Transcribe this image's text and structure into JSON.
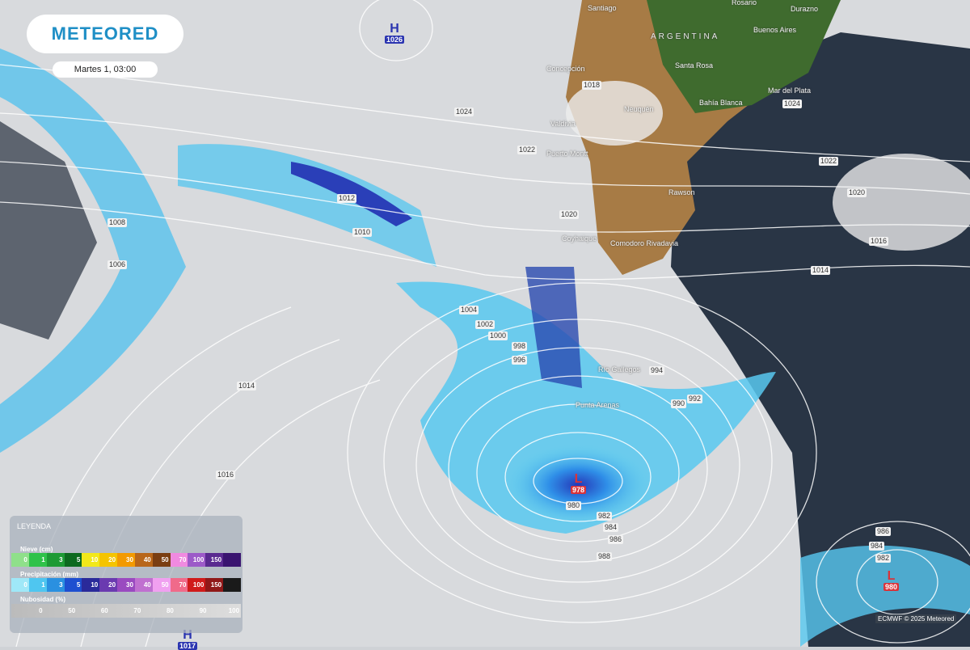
{
  "brand": {
    "logo": "METEORED",
    "datetime": "Martes 1, 03:00"
  },
  "colors": {
    "brand": "#1f8fc6",
    "ocean": "#101a2a",
    "land_green": "#3f6b2e",
    "land_brown": "#a77b45",
    "precip_light": "#5cd0f0",
    "precip_dark": "#2d3fb8",
    "low_label": "#d9333a",
    "high_label": "#2a34b0"
  },
  "country": "ARGENTINA",
  "cities": [
    "Santiago",
    "Rosario",
    "Durazno",
    "Buenos Aires",
    "Concepción",
    "Santa Rosa",
    "Bahía Blanca",
    "Mar del Plata",
    "Neuquén",
    "Valdivia",
    "Puerto Montt",
    "Rawson",
    "Coyhaique",
    "Comodoro Rivadavia",
    "Río Gallegos",
    "Punta Arenas"
  ],
  "pressure_centers": [
    {
      "type": "H",
      "value": "1026"
    },
    {
      "type": "L",
      "value": "978"
    },
    {
      "type": "L",
      "value": "980"
    },
    {
      "type": "H",
      "value": "1017"
    }
  ],
  "isobar_labels": [
    "1024",
    "1022",
    "1018",
    "1024",
    "1022",
    "1020",
    "1016",
    "1014",
    "1012",
    "1010",
    "1008",
    "1006",
    "1004",
    "1002",
    "1000",
    "998",
    "996",
    "994",
    "992",
    "990",
    "1014",
    "1016",
    "982",
    "984",
    "986",
    "988",
    "980",
    "982",
    "984",
    "986",
    "1020"
  ],
  "legend": {
    "title": "LEYENDA",
    "snow": {
      "label": "Nieve (cm)",
      "steps": [
        "0",
        "1",
        "3",
        "5",
        "10",
        "20",
        "30",
        "40",
        "50",
        "70",
        "100",
        "150"
      ],
      "colors": [
        "#8fe08a",
        "#2fc24a",
        "#1d9a35",
        "#0c6a1f",
        "#f2e81a",
        "#f5c400",
        "#f39a00",
        "#b8661a",
        "#7a3e12",
        "#f08ae0",
        "#9c5ac8",
        "#5a2a90",
        "#3a1470"
      ]
    },
    "precip": {
      "label": "Precipitación (mm)",
      "steps": [
        "0",
        "1",
        "3",
        "5",
        "10",
        "20",
        "30",
        "40",
        "50",
        "70",
        "100",
        "150"
      ],
      "colors": [
        "#9fe8f8",
        "#4fc6f0",
        "#2a90e0",
        "#1e4fd0",
        "#2a2a9a",
        "#6a3ab0",
        "#9a4ac0",
        "#c070d0",
        "#f0a0f0",
        "#f06a8a",
        "#d01a1a",
        "#901818",
        "#1a1a1a"
      ]
    },
    "clouds": {
      "label": "Nubosidad (%)",
      "steps": [
        "0",
        "50",
        "60",
        "70",
        "80",
        "90",
        "100"
      ]
    }
  },
  "credit": "ECMWF © 2025 Meteored"
}
